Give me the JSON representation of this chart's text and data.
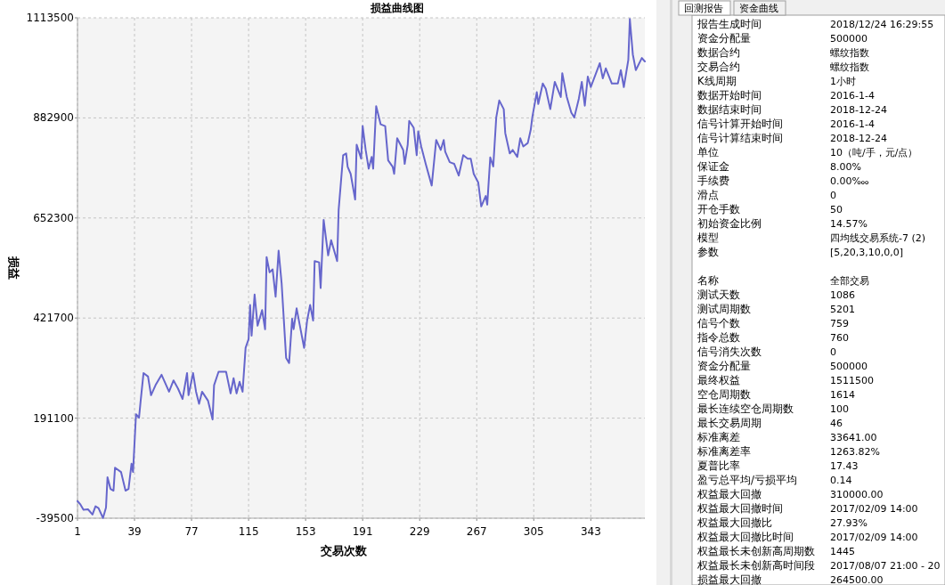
{
  "chart_data": [
    {
      "type": "line",
      "title": "损益曲线图",
      "xlabel": "交易次数",
      "ylabel": "损益",
      "grid": true,
      "marker": "none",
      "line_style": "solid",
      "xlim": [
        1,
        379
      ],
      "xticks": [
        1,
        39,
        77,
        115,
        153,
        191,
        229,
        267,
        305,
        343
      ],
      "ylim": [
        -39500,
        1113500
      ],
      "yticks": [
        -39500,
        191100,
        421700,
        652300,
        882900,
        1113500
      ],
      "series": [
        {
          "color": "#6666cc",
          "x": [
            1,
            3,
            5,
            8,
            11,
            13,
            15,
            18,
            20,
            21,
            23,
            25,
            26,
            30,
            33,
            35,
            37,
            38,
            40,
            42,
            43,
            45,
            48,
            50,
            53,
            57,
            62,
            65,
            68,
            71,
            74,
            75,
            78,
            80,
            82,
            84,
            88,
            91,
            92,
            95,
            100,
            103,
            105,
            107,
            109,
            111,
            113,
            115,
            116,
            117,
            119,
            121,
            124,
            126,
            127,
            129,
            131,
            133,
            135,
            137,
            140,
            142,
            144,
            145,
            147,
            150,
            152,
            154,
            156,
            158,
            159,
            162,
            163,
            165,
            168,
            170,
            174,
            175,
            178,
            180,
            181,
            183,
            186,
            187,
            190,
            191,
            193,
            195,
            197,
            198,
            200,
            203,
            206,
            208,
            211,
            212,
            214,
            218,
            219,
            221,
            222,
            225,
            227,
            228,
            230,
            233,
            237,
            240,
            243,
            245,
            246,
            249,
            252,
            255,
            258,
            261,
            263,
            265,
            268,
            270,
            273,
            274,
            276,
            278,
            280,
            282,
            285,
            286,
            289,
            291,
            294,
            296,
            298,
            301,
            303,
            304,
            307,
            308,
            311,
            313,
            316,
            319,
            323,
            324,
            327,
            330,
            332,
            335,
            337,
            339,
            341,
            343,
            349,
            351,
            353,
            357,
            361,
            363,
            365,
            368,
            369,
            371,
            373,
            377,
            379
          ],
          "values": [
            0,
            -8000,
            -20000,
            -19000,
            -31000,
            -12000,
            -16000,
            -39000,
            -15000,
            55000,
            28000,
            24000,
            77000,
            67000,
            24000,
            28000,
            86000,
            67000,
            200000,
            192000,
            228000,
            295000,
            287000,
            244000,
            267000,
            291000,
            252000,
            278000,
            259000,
            235000,
            295000,
            244000,
            295000,
            252000,
            224000,
            252000,
            231000,
            188000,
            267000,
            298000,
            298000,
            248000,
            283000,
            248000,
            275000,
            252000,
            353000,
            373000,
            452000,
            381000,
            476000,
            404000,
            440000,
            396000,
            562000,
            527000,
            534000,
            471000,
            577000,
            502000,
            330000,
            318000,
            420000,
            396000,
            444000,
            389000,
            353000,
            416000,
            452000,
            416000,
            553000,
            550000,
            491000,
            648000,
            566000,
            601000,
            553000,
            671000,
            797000,
            801000,
            770000,
            754000,
            695000,
            821000,
            789000,
            864000,
            809000,
            766000,
            793000,
            766000,
            910000,
            868000,
            864000,
            785000,
            770000,
            754000,
            836000,
            809000,
            777000,
            821000,
            876000,
            860000,
            797000,
            852000,
            817000,
            777000,
            727000,
            832000,
            809000,
            832000,
            805000,
            781000,
            777000,
            750000,
            797000,
            789000,
            789000,
            754000,
            734000,
            679000,
            703000,
            683000,
            792000,
            771000,
            884000,
            923000,
            903000,
            848000,
            801000,
            809000,
            793000,
            836000,
            817000,
            825000,
            856000,
            884000,
            942000,
            915000,
            962000,
            950000,
            903000,
            966000,
            931000,
            986000,
            931000,
            895000,
            884000,
            927000,
            966000,
            911000,
            978000,
            954000,
            1009000,
            974000,
            997000,
            962000,
            962000,
            993000,
            954000,
            1017000,
            1111000,
            1029000,
            993000,
            1021000,
            1013000
          ]
        }
      ]
    },
    {
      "type": "other",
      "annotations": [
        "回测报告",
        "资金曲线",
        "报告生成时间",
        "2018/12/24 16:29:55",
        "资金分配量",
        "500000",
        "数据合约",
        "螺纹指数",
        "交易合约",
        "螺纹指数",
        "K线周期",
        "1小时",
        "数据开始时间",
        "2016-1-4",
        "数据结束时间",
        "2018-12-24",
        "信号计算开始时间",
        "2016-1-4",
        "信号计算结束时间",
        "2018-12-24",
        "单位",
        "10（吨/手，元/点）",
        "保证金",
        "8.00%",
        "手续费",
        "0.00‱",
        "滑点",
        "0",
        "开仓手数",
        "50",
        "初始资金比例",
        "14.57%",
        "模型",
        "四均线交易系统-7 (2)",
        "参数",
        "[5,20,3,10,0,0]",
        "名称",
        "全部交易",
        "测试天数",
        "1086",
        "测试周期数",
        "5201",
        "信号个数",
        "759",
        "指令总数",
        "760",
        "信号消失次数",
        "0",
        "资金分配量",
        "500000",
        "最终权益",
        "1511500",
        "空仓周期数",
        "1614",
        "最长连续空仓周期数",
        "100",
        "最长交易周期",
        "46",
        "标准离差",
        "33641.00",
        "标准离差率",
        "1263.82%",
        "夏普比率",
        "17.43",
        "盈亏总平均/亏损平均",
        "0.14",
        "权益最大回撤",
        "310000.00",
        "权益最大回撤时间",
        "2017/02/09 14:00",
        "权益最大回撤比",
        "27.93%",
        "权益最大回撤比时间",
        "2017/02/09 14:00",
        "权益最长未创新高周期数",
        "1445",
        "权益最长未创新高时间段",
        "2017/08/07 21:00 - 20",
        "损益最大回撤",
        "264500.00"
      ]
    }
  ]
}
